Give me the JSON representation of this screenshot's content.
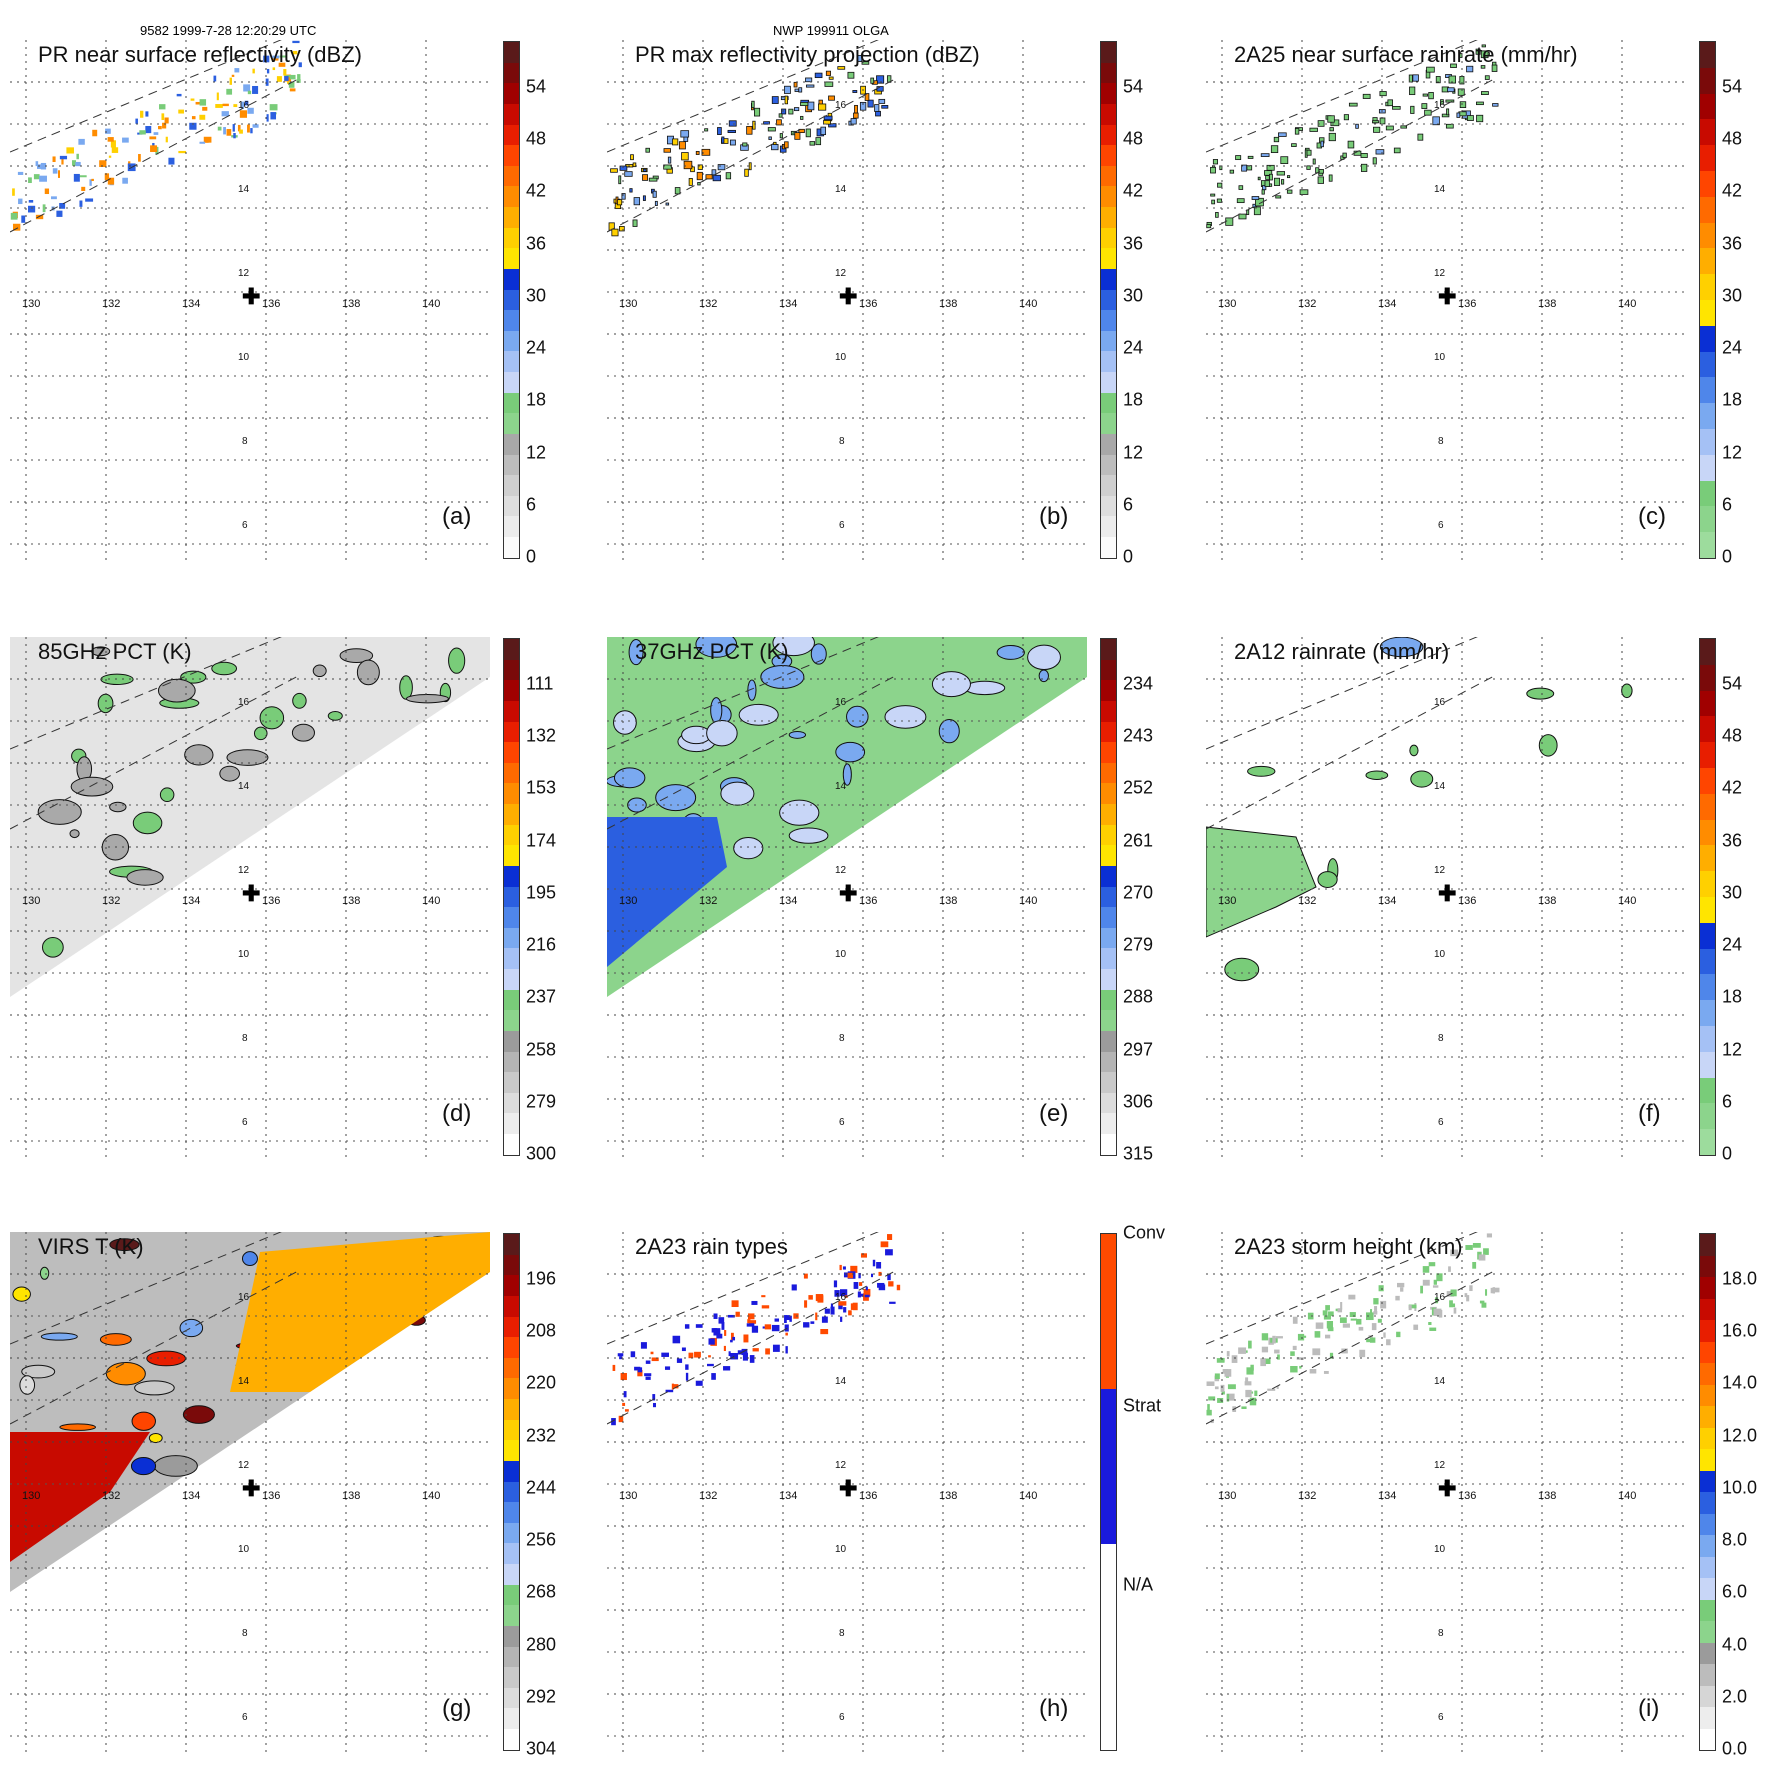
{
  "header_left": "9582 1999-7-28 12:20:29 UTC",
  "header_center": "NWP 199911 OLGA",
  "lon_labels": [
    "130",
    "132",
    "134",
    "136",
    "138",
    "140"
  ],
  "lat_labels": [
    "16",
    "14",
    "12",
    "10",
    "8",
    "6"
  ],
  "center_marker": "✚",
  "palettes": {
    "reflect": [
      "#fbfbfb",
      "#ececec",
      "#dedede",
      "#cfcfcf",
      "#bdbdbd",
      "#a8a8a8",
      "#8cd48c",
      "#79cc79",
      "#c8d6f7",
      "#a5c1f5",
      "#7aa9f0",
      "#4f86ea",
      "#2b5fe0",
      "#0a2fd4",
      "#ffe500",
      "#ffd000",
      "#ffae00",
      "#ff8c00",
      "#ff6a00",
      "#ff4500",
      "#e81e00",
      "#c80a00",
      "#a00000",
      "#7a0a0a",
      "#5a1a1a"
    ],
    "pct": [
      "#ffffff",
      "#ededed",
      "#dcdcdc",
      "#c9c9c9",
      "#b4b4b4",
      "#9b9b9b",
      "#8cd48c",
      "#79cc79",
      "#c8d6f7",
      "#a5c1f5",
      "#7aa9f0",
      "#4f86ea",
      "#2b5fe0",
      "#0a2fd4",
      "#ffe500",
      "#ffd000",
      "#ffae00",
      "#ff8c00",
      "#ff6a00",
      "#ff4500",
      "#e81e00",
      "#c80a00",
      "#a00000",
      "#7a0a0a",
      "#5a1a1a"
    ],
    "rain": [
      "#9ddc9d",
      "#8cd48c",
      "#79cc79",
      "#c8d6f7",
      "#a5c1f5",
      "#7aa9f0",
      "#4f86ea",
      "#2b5fe0",
      "#0a2fd4",
      "#ffe500",
      "#ffd000",
      "#ffae00",
      "#ff8c00",
      "#ff6a00",
      "#ff4500",
      "#e81e00",
      "#c80a00",
      "#a00000",
      "#7a0a0a",
      "#5a1a1a"
    ],
    "height": [
      "#ffffff",
      "#ededed",
      "#d6d6d6",
      "#bcbcbc",
      "#9b9b9b",
      "#8cd48c",
      "#79cc79",
      "#c8d6f7",
      "#a5c1f5",
      "#7aa9f0",
      "#4f86ea",
      "#2b5fe0",
      "#0a2fd4",
      "#ffe500",
      "#ffd000",
      "#ffae00",
      "#ff8c00",
      "#ff6a00",
      "#ff4500",
      "#e81e00",
      "#c80a00",
      "#a00000",
      "#7a0a0a",
      "#5a1a1a"
    ],
    "raintype": [
      "#ffffff",
      "#ffffff",
      "#ffffff",
      "#ffffff",
      "#1a1adc",
      "#1a1adc",
      "#1a1adc",
      "#ff4a00",
      "#ff4a00",
      "#ff4a00"
    ]
  },
  "panels": [
    {
      "title": "PR near surface reflectivity (dBZ)",
      "label": "(a)",
      "palette": "reflect",
      "ticks": [
        "0",
        "6",
        "12",
        "18",
        "24",
        "30",
        "36",
        "42",
        "48",
        "54"
      ],
      "tick_top": 54,
      "tick_max": 60,
      "view": "swath"
    },
    {
      "title": "PR max reflectivity projection (dBZ)",
      "label": "(b)",
      "palette": "reflect",
      "ticks": [
        "0",
        "6",
        "12",
        "18",
        "24",
        "30",
        "36",
        "42",
        "48",
        "54"
      ],
      "tick_top": 54,
      "tick_max": 60,
      "view": "swath"
    },
    {
      "title": "2A25 near surface rainrate (mm/hr)",
      "label": "(c)",
      "palette": "rain",
      "ticks": [
        "0",
        "6",
        "12",
        "18",
        "24",
        "30",
        "36",
        "42",
        "48",
        "54"
      ],
      "tick_top": 54,
      "tick_max": 60,
      "view": "swath"
    },
    {
      "title": "85GHz PCT (K)",
      "label": "(d)",
      "palette": "pct",
      "ticks": [
        "300",
        "279",
        "258",
        "237",
        "216",
        "195",
        "174",
        "153",
        "132",
        "111"
      ],
      "tick_top": 111,
      "tick_max": 90,
      "view": "triangle"
    },
    {
      "title": "37GHz PCT (K)",
      "label": "(e)",
      "palette": "pct",
      "ticks": [
        "315",
        "306",
        "297",
        "288",
        "279",
        "270",
        "261",
        "252",
        "243",
        "234"
      ],
      "tick_top": 234,
      "tick_max": 225,
      "view": "triangle"
    },
    {
      "title": "2A12 rainrate (mm/hr)",
      "label": "(f)",
      "palette": "rain",
      "ticks": [
        "0",
        "6",
        "12",
        "18",
        "24",
        "30",
        "36",
        "42",
        "48",
        "54"
      ],
      "tick_top": 54,
      "tick_max": 60,
      "view": "triangle"
    },
    {
      "title": "VIRS T (K)",
      "label": "(g)",
      "palette": "pct",
      "ticks": [
        "304",
        "292",
        "280",
        "268",
        "256",
        "244",
        "232",
        "220",
        "208",
        "196"
      ],
      "tick_top": 196,
      "tick_max": 184,
      "view": "triangle"
    },
    {
      "title": "2A23 rain types",
      "label": "(h)",
      "palette": "raintype",
      "ticks": [
        "N/A",
        "Strat",
        "Conv"
      ],
      "view": "swath"
    },
    {
      "title": "2A23 storm height (km)",
      "label": "(i)",
      "palette": "height",
      "ticks": [
        "0.0",
        "2.0",
        "4.0",
        "6.0",
        "8.0",
        "10.0",
        "12.0",
        "14.0",
        "16.0",
        "18.0"
      ],
      "tick_top": 18,
      "tick_max": 20,
      "view": "swath"
    }
  ]
}
